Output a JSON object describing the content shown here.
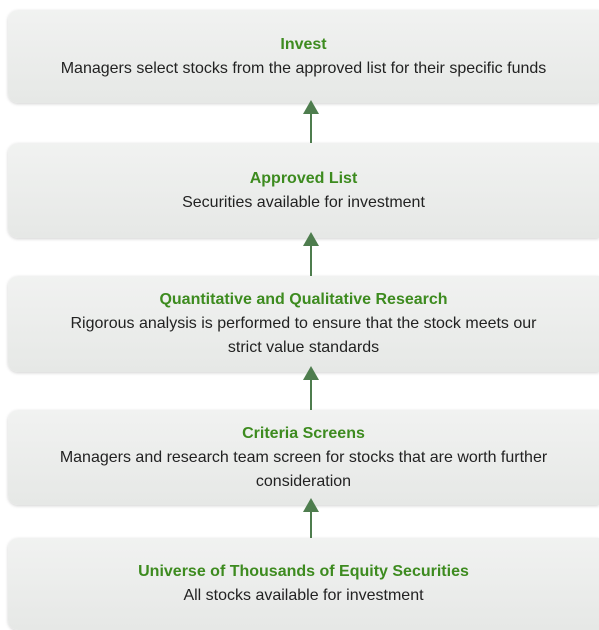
{
  "nodes": [
    {
      "title": "Invest",
      "description": "Managers select stocks from the approved list for their specific funds"
    },
    {
      "title": "Approved List",
      "description": "Securities available for investment"
    },
    {
      "title": "Quantitative and Qualitative Research",
      "description": "Rigorous analysis is performed to ensure that the stock meets our strict value standards"
    },
    {
      "title": "Criteria Screens",
      "description": "Managers and research team screen for stocks that are worth further consideration"
    },
    {
      "title": "Universe of Thousands of Equity Securities",
      "description": "All stocks available for investment"
    }
  ]
}
